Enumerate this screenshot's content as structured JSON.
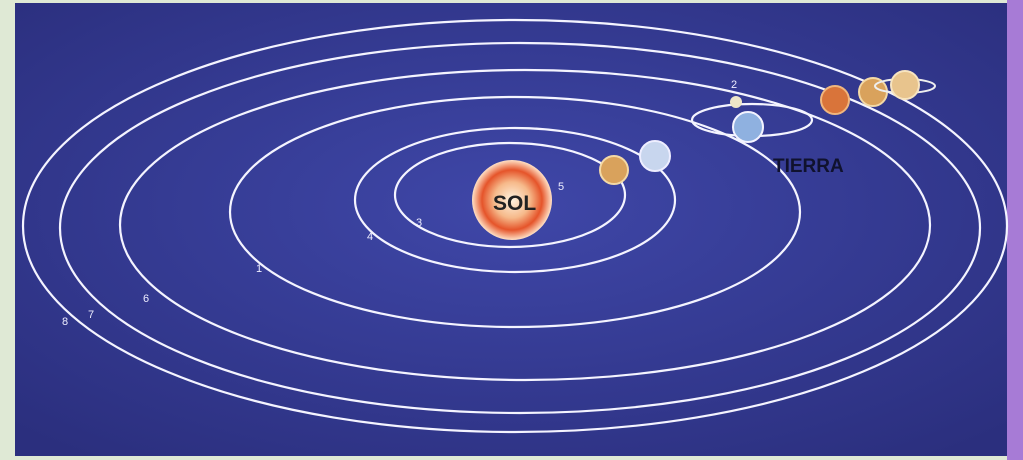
{
  "labels": {
    "sun": "SOL",
    "earth": "TIERRA",
    "orbits": [
      "1",
      "2",
      "3",
      "4",
      "5",
      "6",
      "7",
      "8"
    ]
  }
}
